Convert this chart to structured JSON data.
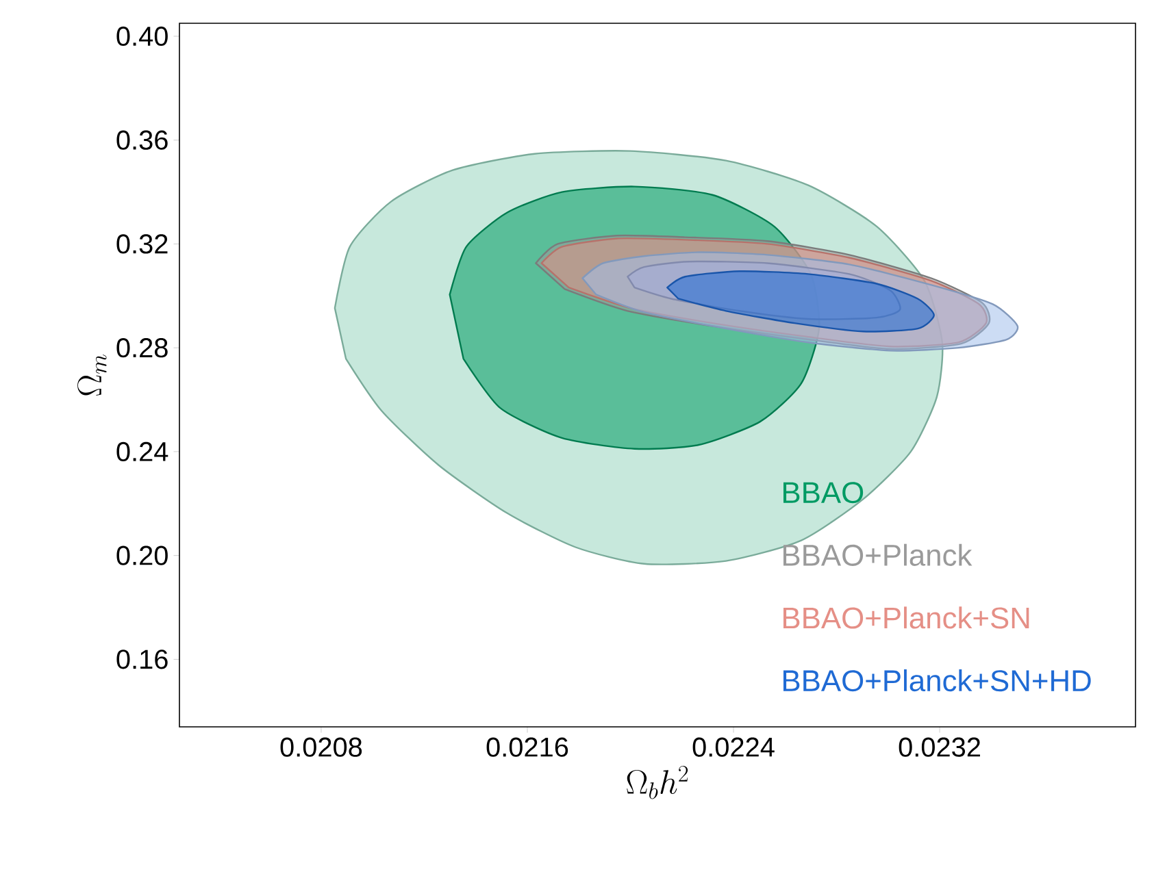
{
  "chart_data": {
    "type": "area",
    "xlabel": "\\Omega_b h^2",
    "ylabel": "\\Omega_m",
    "xlim": [
      0.02025,
      0.02396
    ],
    "ylim": [
      0.134,
      0.405
    ],
    "xticks": [
      0.0208,
      0.0216,
      0.0224,
      0.0232
    ],
    "yticks": [
      0.16,
      {
        "value": 0.2,
        "label": "0.20"
      },
      0.24,
      0.28,
      0.32,
      0.36,
      {
        "value": 0.4,
        "label": "0.40"
      }
    ],
    "legend": "bottom right",
    "series": [
      {
        "color": "#99d6c0",
        "x": [
          0.020853,
          0.020911,
          0.021071,
          0.02131,
          0.021628,
          0.022,
          0.022371,
          0.02269,
          0.022955,
          0.023141,
          0.02321,
          0.023189,
          0.023088,
          0.022902,
          0.022663,
          0.022371,
          0.022053,
          0.021787,
          0.021522,
          0.021257,
          0.021034,
          0.020896
        ],
        "values": [
          0.2953,
          0.3189,
          0.3363,
          0.3484,
          0.3547,
          0.3558,
          0.3521,
          0.3426,
          0.3268,
          0.3058,
          0.2821,
          0.2611,
          0.24,
          0.2216,
          0.2058,
          0.1979,
          0.1968,
          0.2032,
          0.2163,
          0.2347,
          0.2558,
          0.2758
        ]
      },
      {
        "name": "BBAO",
        "color": "#009a63",
        "x": [
          0.021299,
          0.021363,
          0.021522,
          0.021734,
          0.022016,
          0.022318,
          0.022557,
          0.0227,
          0.022732,
          0.022663,
          0.022504,
          0.022265,
          0.022016,
          0.021734,
          0.021495,
          0.021352
        ],
        "values": [
          0.3005,
          0.3189,
          0.3321,
          0.34,
          0.3421,
          0.3389,
          0.3268,
          0.3084,
          0.2874,
          0.2663,
          0.2516,
          0.2426,
          0.2411,
          0.2453,
          0.2568,
          0.2758
        ]
      },
      {
        "name": "BBAO+Planck",
        "color": "#9a9a9a",
        "x": [
          0.021633,
          0.021718,
          0.021947,
          0.022212,
          0.022531,
          0.022849,
          0.023168,
          0.023364,
          0.023391,
          0.023284,
          0.023008,
          0.02269,
          0.022318,
          0.021989,
          0.021745
        ],
        "values": [
          0.3126,
          0.32,
          0.3232,
          0.3226,
          0.3211,
          0.3158,
          0.3068,
          0.2974,
          0.2895,
          0.2816,
          0.2795,
          0.2832,
          0.2884,
          0.2942,
          0.3026
        ]
      },
      {
        "name": "BBAO+Planck+SN",
        "color": "#e58f86",
        "x": [
          0.021655,
          0.021734,
          0.021947,
          0.022212,
          0.022531,
          0.022849,
          0.023168,
          0.023353,
          0.02338,
          0.023274,
          0.023008,
          0.02269,
          0.022318,
          0.022,
          0.021761
        ],
        "values": [
          0.3126,
          0.3189,
          0.3221,
          0.3216,
          0.32,
          0.3147,
          0.3058,
          0.2968,
          0.2895,
          0.2821,
          0.2805,
          0.2842,
          0.2895,
          0.2953,
          0.3032
        ]
      },
      {
        "color": "#a3bfeb",
        "x": [
          0.021814,
          0.021894,
          0.022053,
          0.022265,
          0.022531,
          0.022849,
          0.023168,
          0.023406,
          0.023502,
          0.02346,
          0.023274,
          0.023008,
          0.02269,
          0.022371,
          0.022053,
          0.021867
        ],
        "values": [
          0.3068,
          0.3126,
          0.3153,
          0.3168,
          0.3158,
          0.3121,
          0.3042,
          0.2968,
          0.2884,
          0.2832,
          0.28,
          0.2789,
          0.2821,
          0.2874,
          0.2937,
          0.3005
        ]
      },
      {
        "color": "#a2acd8",
        "x": [
          0.021989,
          0.022053,
          0.022228,
          0.022531,
          0.022849,
          0.023008,
          0.023046,
          0.022955,
          0.02269,
          0.022424,
          0.022159,
          0.022016
        ],
        "values": [
          0.3074,
          0.3111,
          0.3132,
          0.3126,
          0.3084,
          0.3021,
          0.2947,
          0.2916,
          0.2911,
          0.2942,
          0.2989,
          0.3032
        ]
      },
      {
        "name": "BBAO+Planck+SN+HD",
        "color": "#1f6ad4",
        "x": [
          0.022143,
          0.022212,
          0.022424,
          0.02269,
          0.022955,
          0.023115,
          0.023178,
          0.023115,
          0.022902,
          0.022637,
          0.022371,
          0.022186
        ],
        "values": [
          0.3032,
          0.3074,
          0.3095,
          0.3084,
          0.3047,
          0.2989,
          0.2926,
          0.2874,
          0.2863,
          0.2895,
          0.2942,
          0.2989
        ]
      }
    ]
  }
}
